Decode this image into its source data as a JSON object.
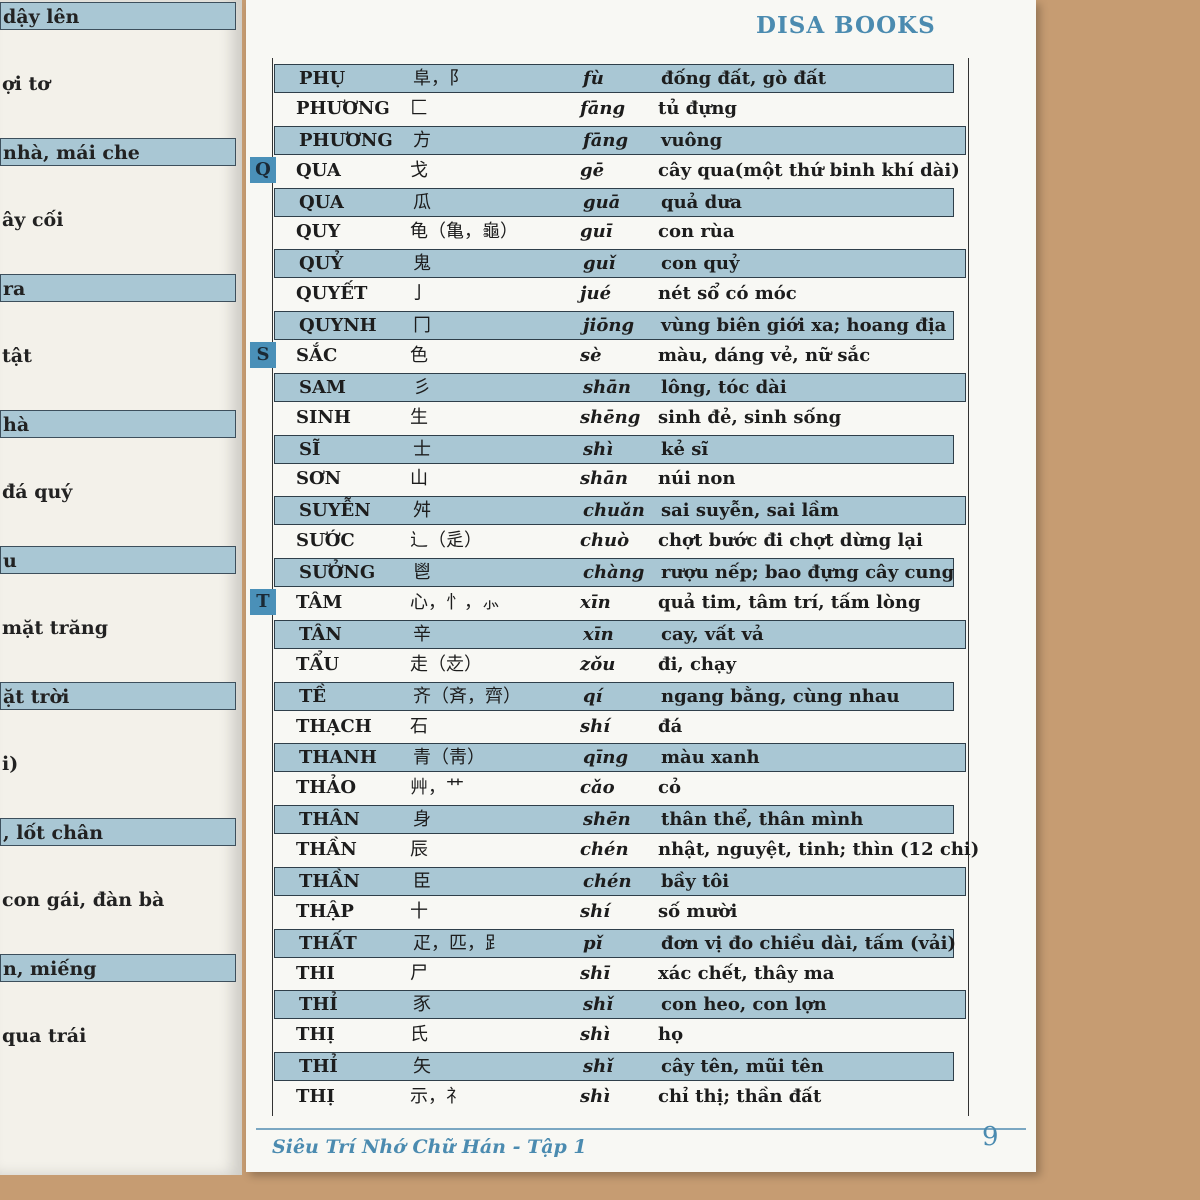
{
  "header": {
    "brand": "DISA BOOKS"
  },
  "left_page": {
    "fragments": [
      "dậy lên",
      "ợi tơ",
      "nhà, mái che",
      "ây cối",
      "ra",
      "tật",
      "hà",
      "đá quý",
      "u",
      "mặt trăng",
      "ặt trời",
      "i)",
      ", lốt chân",
      "con gái, đàn bà",
      "n, miếng",
      " qua trái"
    ]
  },
  "table": {
    "rows": [
      {
        "name": "PHỤ",
        "han": "阜，阝",
        "pinyin": "fù",
        "meaning": "đống đất, gò đất"
      },
      {
        "name": "PHƯƠNG",
        "han": "匚",
        "pinyin": "fāng",
        "meaning": "tủ đựng"
      },
      {
        "name": "PHƯƠNG",
        "han": "方",
        "pinyin": "fāng",
        "meaning": "vuông"
      },
      {
        "letter": "Q",
        "name": "QUA",
        "han": "戈",
        "pinyin": "gē",
        "meaning": "cây qua(một thứ binh khí dài)"
      },
      {
        "name": "QUA",
        "han": "瓜",
        "pinyin": "guā",
        "meaning": "quả dưa"
      },
      {
        "name": "QUY",
        "han": "龟（亀，龜）",
        "pinyin": "guī",
        "meaning": "con rùa"
      },
      {
        "name": "QUỶ",
        "han": "鬼",
        "pinyin": "guǐ",
        "meaning": "con quỷ"
      },
      {
        "name": "QUYẾT",
        "han": "亅",
        "pinyin": "jué",
        "meaning": "nét sổ có móc"
      },
      {
        "name": "QUYNH",
        "han": "冂",
        "pinyin": "jiōng",
        "meaning": "vùng biên giới xa; hoang địa"
      },
      {
        "letter": "S",
        "name": "SẮC",
        "han": "色",
        "pinyin": "sè",
        "meaning": "màu, dáng vẻ, nữ sắc"
      },
      {
        "name": "SAM",
        "han": "彡",
        "pinyin": "shān",
        "meaning": "lông,  tóc dài"
      },
      {
        "name": "SINH",
        "han": "生",
        "pinyin": "shēng",
        "meaning": "sinh đẻ, sinh sống"
      },
      {
        "name": "SĨ",
        "han": "士",
        "pinyin": "shì",
        "meaning": "kẻ sĩ"
      },
      {
        "name": "SƠN",
        "han": "山",
        "pinyin": "shān",
        "meaning": "núi non"
      },
      {
        "name": "SUYỄN",
        "han": "舛",
        "pinyin": "chuǎn",
        "meaning": "sai suyễn, sai lầm"
      },
      {
        "name": "SƯỚC",
        "han": "辶（辵）",
        "pinyin": "chuò",
        "meaning": "chợt bước đi chợt dừng lại"
      },
      {
        "name": "SƯỞNG",
        "han": "鬯",
        "pinyin": "chàng",
        "meaning": "rượu nếp; bao đựng cây cung"
      },
      {
        "letter": "T",
        "name": "TÂM",
        "han": "心，忄，⺗",
        "pinyin": "xīn",
        "meaning": "quả tim, tâm trí, tấm lòng"
      },
      {
        "name": "TÂN",
        "han": "辛",
        "pinyin": "xīn",
        "meaning": "cay, vất vả"
      },
      {
        "name": "TẨU",
        "han": "走（赱）",
        "pinyin": "zǒu",
        "meaning": "đi, chạy"
      },
      {
        "name": "TỀ",
        "han": "齐（斉，齊）",
        "pinyin": "qí",
        "meaning": "ngang bằng, cùng nhau"
      },
      {
        "name": "THẠCH",
        "han": "石",
        "pinyin": "shí",
        "meaning": "đá"
      },
      {
        "name": "THANH",
        "han": "青（靑）",
        "pinyin": "qīng",
        "meaning": "màu xanh"
      },
      {
        "name": "THẢO",
        "han": "艸，艹",
        "pinyin": "cǎo",
        "meaning": "cỏ"
      },
      {
        "name": "THÂN",
        "han": "身",
        "pinyin": "shēn",
        "meaning": "thân thể, thân mình"
      },
      {
        "name": "THẦN",
        "han": "辰",
        "pinyin": "chén",
        "meaning": "nhật, nguyệt, tinh; thìn (12 chi)"
      },
      {
        "name": "THẦN",
        "han": "臣",
        "pinyin": "chén",
        "meaning": "bầy tôi"
      },
      {
        "name": "THẬP",
        "han": "十",
        "pinyin": "shí",
        "meaning": "số mười"
      },
      {
        "name": "THẤT",
        "han": "疋，匹，𧾷",
        "pinyin": "pǐ",
        "meaning": "đơn vị đo chiều dài, tấm (vải)"
      },
      {
        "name": "THI",
        "han": "尸",
        "pinyin": "shī",
        "meaning": "xác chết, thây ma"
      },
      {
        "name": "THỈ",
        "han": "豕",
        "pinyin": "shǐ",
        "meaning": "con heo, con lợn"
      },
      {
        "name": "THỊ",
        "han": "氏",
        "pinyin": "shì",
        "meaning": "họ"
      },
      {
        "name": "THỈ",
        "han": "矢",
        "pinyin": "shǐ",
        "meaning": "cây tên, mũi tên"
      },
      {
        "name": "THỊ",
        "han": "示，礻",
        "pinyin": "shì",
        "meaning": "chỉ thị; thần đất"
      }
    ]
  },
  "footer": {
    "title": "Siêu Trí Nhớ Chữ Hán - Tập 1",
    "page": "9"
  }
}
